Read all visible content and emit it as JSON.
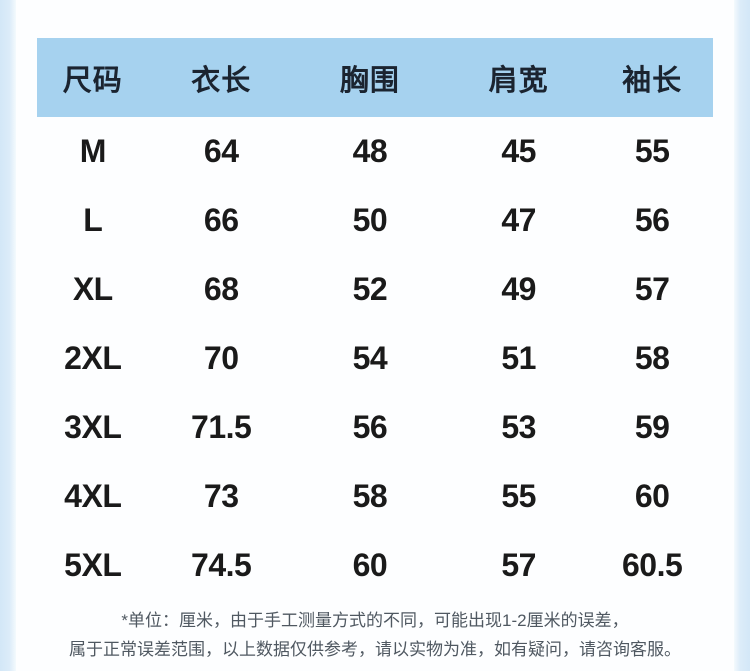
{
  "size_chart": {
    "columns": [
      "尺码",
      "衣长",
      "胸围",
      "肩宽",
      "袖长"
    ],
    "rows": [
      {
        "size": "M",
        "values": [
          "64",
          "48",
          "45",
          "55"
        ]
      },
      {
        "size": "L",
        "values": [
          "66",
          "50",
          "47",
          "56"
        ]
      },
      {
        "size": "XL",
        "values": [
          "68",
          "52",
          "49",
          "57"
        ]
      },
      {
        "size": "2XL",
        "values": [
          "70",
          "54",
          "51",
          "58"
        ]
      },
      {
        "size": "3XL",
        "values": [
          "71.5",
          "56",
          "53",
          "59"
        ]
      },
      {
        "size": "4XL",
        "values": [
          "73",
          "58",
          "55",
          "60"
        ]
      },
      {
        "size": "5XL",
        "values": [
          "74.5",
          "60",
          "57",
          "60.5"
        ]
      }
    ]
  },
  "footnote": {
    "line1": "*单位：厘米，由于手工测量方式的不同，可能出现1-2厘米的误差，",
    "line2": "属于正常误差范围，以上数据仅供参考，请以实物为准，如有疑问，请咨询客服。"
  },
  "colors": {
    "header_bg": "#a6d2ef",
    "edge_strip": "#d3e7f7",
    "header_text": "#1b2430",
    "body_text": "#1a1a1a",
    "footnote_text": "#4f5861"
  }
}
